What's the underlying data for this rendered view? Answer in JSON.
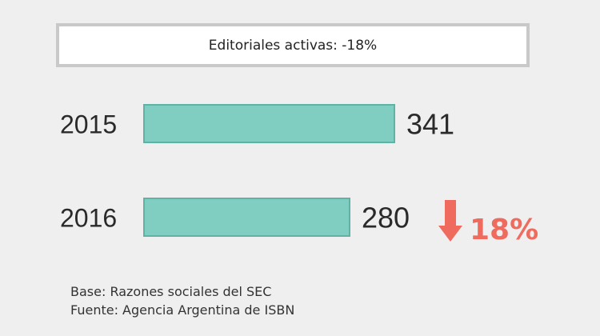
{
  "title": "Editoriales activas: -18%",
  "change": {
    "label": "18%",
    "direction": "down",
    "color": "#ee6b5e"
  },
  "notes": {
    "base": "Base: Razones sociales del SEC",
    "source": "Fuente: Agencia Argentina de ISBN"
  },
  "colors": {
    "bar_fill": "#80cdc2",
    "bar_stroke": "#5eb3a7",
    "background": "#efefef"
  },
  "chart_data": {
    "type": "bar",
    "orientation": "horizontal",
    "categories": [
      "2015",
      "2016"
    ],
    "values": [
      341,
      280
    ],
    "value_labels": [
      "341",
      "280"
    ],
    "title": "Editoriales activas: -18%",
    "xlabel": "",
    "ylabel": "",
    "xlim": [
      0,
      341
    ],
    "grid": false,
    "legend": "none"
  }
}
